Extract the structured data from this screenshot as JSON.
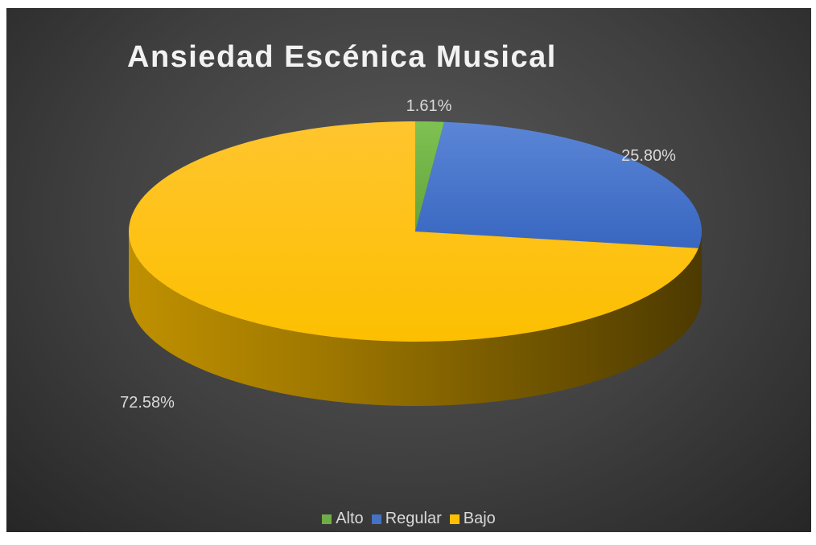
{
  "chart_data": {
    "type": "pie",
    "title": "Ansiedad Escénica Musical",
    "style": "3d",
    "categories": [
      "Alto",
      "Regular",
      "Bajo"
    ],
    "values": [
      1.61,
      25.8,
      72.58
    ],
    "labels": [
      "1.61%",
      "25.80%",
      "72.58%"
    ],
    "colors": [
      "#70ad47",
      "#4472c4",
      "#ffc000"
    ],
    "legend_position": "bottom"
  }
}
